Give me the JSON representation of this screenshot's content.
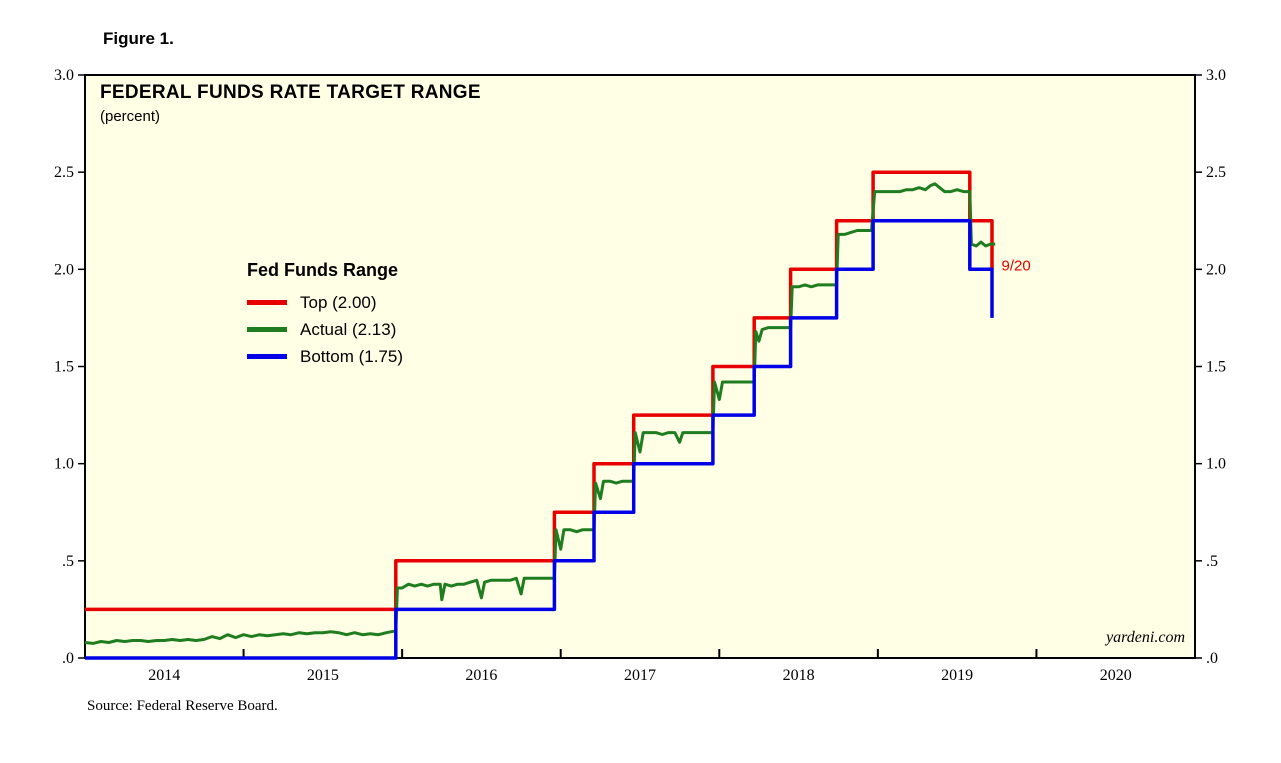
{
  "figure": {
    "label": "Figure 1."
  },
  "source": "Source: Federal Reserve Board.",
  "chart_data": {
    "type": "line",
    "title": "FEDERAL FUNDS RATE TARGET RANGE",
    "subtitle": "(percent)",
    "watermark": "yardeni.com",
    "plot_bg": "#ffffe5",
    "border_color": "#000000",
    "x_range": [
      2014,
      2021
    ],
    "y_range": [
      0,
      3
    ],
    "x_ticks": [
      2015,
      2016,
      2017,
      2018,
      2019,
      2020
    ],
    "x_labels": [
      {
        "v": 2014.5,
        "label": "2014"
      },
      {
        "v": 2015.5,
        "label": "2015"
      },
      {
        "v": 2016.5,
        "label": "2016"
      },
      {
        "v": 2017.5,
        "label": "2017"
      },
      {
        "v": 2018.5,
        "label": "2018"
      },
      {
        "v": 2019.5,
        "label": "2019"
      },
      {
        "v": 2020.5,
        "label": "2020"
      }
    ],
    "y_ticks": [
      {
        "v": 0.0,
        "label": ".0"
      },
      {
        "v": 0.5,
        "label": ".5"
      },
      {
        "v": 1.0,
        "label": "1.0"
      },
      {
        "v": 1.5,
        "label": "1.5"
      },
      {
        "v": 2.0,
        "label": "2.0"
      },
      {
        "v": 2.5,
        "label": "2.5"
      },
      {
        "v": 3.0,
        "label": "3.0"
      }
    ],
    "legend": {
      "title": "Fed Funds Range",
      "entries": [
        {
          "label": "Top (2.00)",
          "color": "#e80000"
        },
        {
          "label": "Actual (2.13)",
          "color": "#1f7d1f"
        },
        {
          "label": "Bottom (1.75)",
          "color": "#0000e8"
        }
      ]
    },
    "annotation": {
      "text": "9/20",
      "color": "#e80000",
      "x": 2019.78,
      "y": 2.02
    },
    "series": [
      {
        "name": "Top",
        "color": "#e80000",
        "width": 3.5,
        "points": [
          [
            2014.0,
            0.25
          ],
          [
            2015.96,
            0.25
          ],
          [
            2015.96,
            0.5
          ],
          [
            2016.96,
            0.5
          ],
          [
            2016.96,
            0.75
          ],
          [
            2017.21,
            0.75
          ],
          [
            2017.21,
            1.0
          ],
          [
            2017.46,
            1.0
          ],
          [
            2017.46,
            1.25
          ],
          [
            2017.96,
            1.25
          ],
          [
            2017.96,
            1.5
          ],
          [
            2018.22,
            1.5
          ],
          [
            2018.22,
            1.75
          ],
          [
            2018.45,
            1.75
          ],
          [
            2018.45,
            2.0
          ],
          [
            2018.74,
            2.0
          ],
          [
            2018.74,
            2.25
          ],
          [
            2018.97,
            2.25
          ],
          [
            2018.97,
            2.5
          ],
          [
            2019.58,
            2.5
          ],
          [
            2019.58,
            2.25
          ],
          [
            2019.72,
            2.25
          ],
          [
            2019.72,
            2.0
          ]
        ]
      },
      {
        "name": "Actual",
        "color": "#1f7d1f",
        "width": 3,
        "points": [
          [
            2014.0,
            0.08
          ],
          [
            2014.05,
            0.075
          ],
          [
            2014.1,
            0.085
          ],
          [
            2014.15,
            0.08
          ],
          [
            2014.2,
            0.09
          ],
          [
            2014.25,
            0.085
          ],
          [
            2014.3,
            0.09
          ],
          [
            2014.35,
            0.09
          ],
          [
            2014.4,
            0.085
          ],
          [
            2014.45,
            0.09
          ],
          [
            2014.5,
            0.09
          ],
          [
            2014.55,
            0.095
          ],
          [
            2014.6,
            0.09
          ],
          [
            2014.65,
            0.095
          ],
          [
            2014.7,
            0.09
          ],
          [
            2014.75,
            0.095
          ],
          [
            2014.8,
            0.11
          ],
          [
            2014.85,
            0.1
          ],
          [
            2014.9,
            0.12
          ],
          [
            2014.95,
            0.105
          ],
          [
            2015.0,
            0.12
          ],
          [
            2015.05,
            0.11
          ],
          [
            2015.1,
            0.12
          ],
          [
            2015.15,
            0.115
          ],
          [
            2015.2,
            0.12
          ],
          [
            2015.25,
            0.125
          ],
          [
            2015.3,
            0.12
          ],
          [
            2015.35,
            0.13
          ],
          [
            2015.4,
            0.125
          ],
          [
            2015.45,
            0.13
          ],
          [
            2015.5,
            0.13
          ],
          [
            2015.55,
            0.135
          ],
          [
            2015.6,
            0.13
          ],
          [
            2015.65,
            0.12
          ],
          [
            2015.7,
            0.13
          ],
          [
            2015.75,
            0.12
          ],
          [
            2015.8,
            0.125
          ],
          [
            2015.85,
            0.12
          ],
          [
            2015.9,
            0.13
          ],
          [
            2015.96,
            0.14
          ],
          [
            2015.97,
            0.36
          ],
          [
            2016.0,
            0.36
          ],
          [
            2016.04,
            0.38
          ],
          [
            2016.08,
            0.37
          ],
          [
            2016.12,
            0.38
          ],
          [
            2016.16,
            0.37
          ],
          [
            2016.2,
            0.38
          ],
          [
            2016.24,
            0.38
          ],
          [
            2016.25,
            0.3
          ],
          [
            2016.27,
            0.38
          ],
          [
            2016.31,
            0.37
          ],
          [
            2016.35,
            0.38
          ],
          [
            2016.39,
            0.38
          ],
          [
            2016.43,
            0.39
          ],
          [
            2016.47,
            0.4
          ],
          [
            2016.5,
            0.31
          ],
          [
            2016.52,
            0.39
          ],
          [
            2016.56,
            0.4
          ],
          [
            2016.6,
            0.4
          ],
          [
            2016.64,
            0.4
          ],
          [
            2016.68,
            0.4
          ],
          [
            2016.72,
            0.41
          ],
          [
            2016.75,
            0.33
          ],
          [
            2016.77,
            0.41
          ],
          [
            2016.81,
            0.41
          ],
          [
            2016.85,
            0.41
          ],
          [
            2016.89,
            0.41
          ],
          [
            2016.93,
            0.41
          ],
          [
            2016.96,
            0.41
          ],
          [
            2016.97,
            0.66
          ],
          [
            2017.0,
            0.56
          ],
          [
            2017.02,
            0.66
          ],
          [
            2017.06,
            0.66
          ],
          [
            2017.1,
            0.65
          ],
          [
            2017.14,
            0.66
          ],
          [
            2017.18,
            0.66
          ],
          [
            2017.21,
            0.66
          ],
          [
            2017.22,
            0.9
          ],
          [
            2017.25,
            0.82
          ],
          [
            2017.27,
            0.91
          ],
          [
            2017.31,
            0.91
          ],
          [
            2017.35,
            0.9
          ],
          [
            2017.39,
            0.91
          ],
          [
            2017.43,
            0.91
          ],
          [
            2017.46,
            0.91
          ],
          [
            2017.47,
            1.16
          ],
          [
            2017.5,
            1.06
          ],
          [
            2017.52,
            1.16
          ],
          [
            2017.56,
            1.16
          ],
          [
            2017.6,
            1.16
          ],
          [
            2017.64,
            1.15
          ],
          [
            2017.68,
            1.16
          ],
          [
            2017.72,
            1.16
          ],
          [
            2017.75,
            1.11
          ],
          [
            2017.77,
            1.16
          ],
          [
            2017.81,
            1.16
          ],
          [
            2017.85,
            1.16
          ],
          [
            2017.89,
            1.16
          ],
          [
            2017.93,
            1.16
          ],
          [
            2017.96,
            1.16
          ],
          [
            2017.97,
            1.42
          ],
          [
            2018.0,
            1.33
          ],
          [
            2018.02,
            1.42
          ],
          [
            2018.06,
            1.42
          ],
          [
            2018.1,
            1.42
          ],
          [
            2018.14,
            1.42
          ],
          [
            2018.18,
            1.42
          ],
          [
            2018.22,
            1.42
          ],
          [
            2018.23,
            1.68
          ],
          [
            2018.25,
            1.63
          ],
          [
            2018.27,
            1.69
          ],
          [
            2018.31,
            1.7
          ],
          [
            2018.35,
            1.7
          ],
          [
            2018.39,
            1.7
          ],
          [
            2018.43,
            1.7
          ],
          [
            2018.45,
            1.7
          ],
          [
            2018.46,
            1.91
          ],
          [
            2018.5,
            1.91
          ],
          [
            2018.54,
            1.92
          ],
          [
            2018.58,
            1.91
          ],
          [
            2018.62,
            1.92
          ],
          [
            2018.66,
            1.92
          ],
          [
            2018.7,
            1.92
          ],
          [
            2018.74,
            1.92
          ],
          [
            2018.75,
            2.18
          ],
          [
            2018.79,
            2.18
          ],
          [
            2018.83,
            2.19
          ],
          [
            2018.87,
            2.2
          ],
          [
            2018.91,
            2.2
          ],
          [
            2018.96,
            2.2
          ],
          [
            2018.98,
            2.4
          ],
          [
            2019.02,
            2.4
          ],
          [
            2019.06,
            2.4
          ],
          [
            2019.1,
            2.4
          ],
          [
            2019.14,
            2.4
          ],
          [
            2019.18,
            2.41
          ],
          [
            2019.22,
            2.41
          ],
          [
            2019.26,
            2.42
          ],
          [
            2019.3,
            2.41
          ],
          [
            2019.33,
            2.43
          ],
          [
            2019.36,
            2.44
          ],
          [
            2019.39,
            2.42
          ],
          [
            2019.42,
            2.4
          ],
          [
            2019.46,
            2.4
          ],
          [
            2019.5,
            2.41
          ],
          [
            2019.54,
            2.4
          ],
          [
            2019.58,
            2.4
          ],
          [
            2019.59,
            2.13
          ],
          [
            2019.62,
            2.12
          ],
          [
            2019.65,
            2.14
          ],
          [
            2019.68,
            2.12
          ],
          [
            2019.71,
            2.13
          ],
          [
            2019.74,
            2.13
          ]
        ]
      },
      {
        "name": "Bottom",
        "color": "#0000e8",
        "width": 3.5,
        "points": [
          [
            2014.0,
            0.0
          ],
          [
            2015.96,
            0.0
          ],
          [
            2015.96,
            0.25
          ],
          [
            2016.96,
            0.25
          ],
          [
            2016.96,
            0.5
          ],
          [
            2017.21,
            0.5
          ],
          [
            2017.21,
            0.75
          ],
          [
            2017.46,
            0.75
          ],
          [
            2017.46,
            1.0
          ],
          [
            2017.96,
            1.0
          ],
          [
            2017.96,
            1.25
          ],
          [
            2018.22,
            1.25
          ],
          [
            2018.22,
            1.5
          ],
          [
            2018.45,
            1.5
          ],
          [
            2018.45,
            1.75
          ],
          [
            2018.74,
            1.75
          ],
          [
            2018.74,
            2.0
          ],
          [
            2018.97,
            2.0
          ],
          [
            2018.97,
            2.25
          ],
          [
            2019.58,
            2.25
          ],
          [
            2019.58,
            2.0
          ],
          [
            2019.72,
            2.0
          ],
          [
            2019.72,
            1.75
          ]
        ]
      }
    ]
  }
}
